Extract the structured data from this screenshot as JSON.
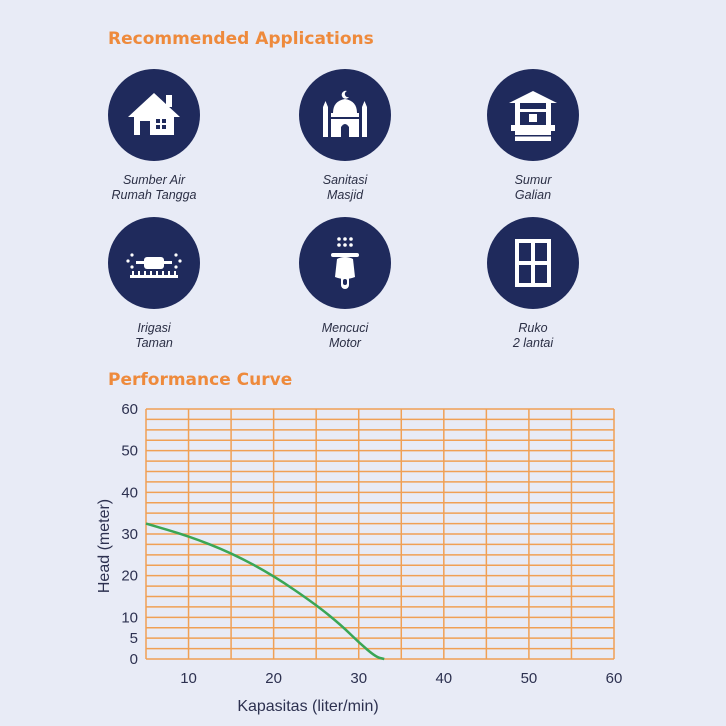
{
  "recommended": {
    "title": "Recommended Applications",
    "items": [
      {
        "line1": "Sumber Air",
        "line2": "Rumah Tangga",
        "icon": "house-icon"
      },
      {
        "line1": "Sanitasi",
        "line2": "Masjid",
        "icon": "mosque-icon"
      },
      {
        "line1": "Sumur",
        "line2": "Galian",
        "icon": "well-icon"
      },
      {
        "line1": "Irigasi",
        "line2": "Taman",
        "icon": "sprinkler-icon"
      },
      {
        "line1": "Mencuci",
        "line2": "Motor",
        "icon": "scooter-icon"
      },
      {
        "line1": "Ruko",
        "line2": "2 lantai",
        "icon": "building-window-icon"
      }
    ],
    "icon_bg_color": "#1f2a5c"
  },
  "performance": {
    "title": "Performance Curve"
  },
  "chart_data": {
    "type": "line",
    "xlabel": "Kapasitas (liter/min)",
    "ylabel": "Head (meter)",
    "xlim": [
      5,
      60
    ],
    "ylim": [
      0,
      60
    ],
    "x_ticks": [
      "10",
      "20",
      "30",
      "40",
      "50",
      "60"
    ],
    "y_ticks": [
      "0",
      "5",
      "10",
      "20",
      "30",
      "40",
      "50",
      "60"
    ],
    "grid": true,
    "grid_color": "#f0a055",
    "line_color": "#3aa655",
    "series": [
      {
        "x": [
          5,
          10,
          15,
          20,
          25,
          28,
          30,
          32,
          33
        ],
        "y": [
          32.5,
          29.5,
          25.5,
          20,
          13,
          8,
          4,
          0.5,
          0
        ]
      }
    ]
  }
}
